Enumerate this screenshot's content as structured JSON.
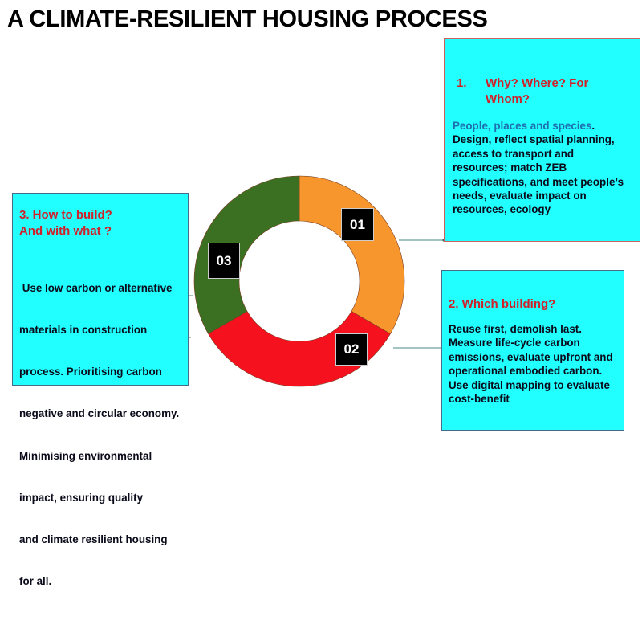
{
  "title": "A CLIMATE-RESILIENT HOUSING PROCESS",
  "colors": {
    "segment_01": "#f7962c",
    "segment_02": "#f5121e",
    "segment_03": "#3b7023",
    "box_bg": "#22ffff",
    "heading": "#d0202a",
    "highlight": "#1e6fb0"
  },
  "segments": [
    {
      "label": "01"
    },
    {
      "label": "02"
    },
    {
      "label": "03"
    }
  ],
  "box1": {
    "number": "1.",
    "heading_lines": [
      "Why? Where? For",
      "Whom?"
    ],
    "highlight": "People, places and species",
    "highlight_end": ".",
    "lines": [
      "Design, reflect spatial planning,",
      "access to transport and",
      "resources; match ZEB",
      "specifications, and meet people’s",
      "needs, evaluate impact on",
      "resources, ecology"
    ]
  },
  "box2": {
    "heading": "2. Which building?",
    "lines": [
      "Reuse first, demolish last.",
      "Measure life-cycle carbon",
      "emissions, evaluate upfront and",
      "operational embodied carbon.",
      "Use digital mapping to evaluate",
      "cost-benefit"
    ]
  },
  "box3": {
    "heading_lines": [
      "3. How to build?",
      "And with what ?"
    ],
    "lines": [
      " Use low carbon or alternative",
      "materials in construction",
      "process. Prioritising carbon",
      "negative and circular economy.",
      "Minimising environmental",
      "impact, ensuring quality",
      "and climate resilient housing",
      "for all."
    ]
  }
}
